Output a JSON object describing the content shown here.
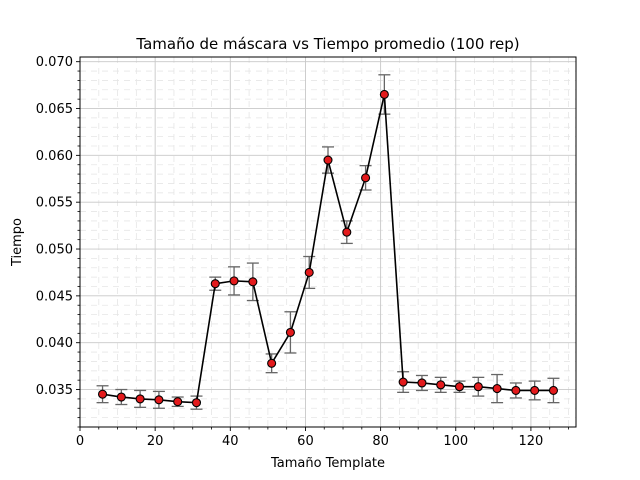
{
  "chart_data": {
    "type": "line",
    "title": "Tamaño de máscara vs Tiempo promedio (100 rep)",
    "xlabel": "Tamaño Template",
    "ylabel": "Tiempo",
    "xlim": [
      0,
      132
    ],
    "ylim": [
      0.031,
      0.0705
    ],
    "xticks": [
      0,
      20,
      40,
      60,
      80,
      100,
      120
    ],
    "yticks": [
      0.035,
      0.04,
      0.045,
      0.05,
      0.055,
      0.06,
      0.065,
      0.07
    ],
    "ytick_labels": [
      "0.035",
      "0.040",
      "0.045",
      "0.050",
      "0.055",
      "0.060",
      "0.065",
      "0.070"
    ],
    "grid": true,
    "minor_grid": true,
    "colors": {
      "line": "#000000",
      "marker_fill": "#e31a1c",
      "marker_edge": "#000000",
      "errorbar": "#666666",
      "grid_major": "#c8c8c8",
      "grid_minor": "#e6e6e6"
    },
    "series": [
      {
        "x": [
          6,
          11,
          16,
          21,
          26,
          31,
          36,
          41,
          46,
          51,
          56,
          61,
          66,
          71,
          76,
          81,
          86,
          91,
          96,
          101,
          106,
          111,
          116,
          121,
          126
        ],
        "y": [
          0.0345,
          0.0342,
          0.034,
          0.0339,
          0.0337,
          0.0336,
          0.0463,
          0.0466,
          0.0465,
          0.0378,
          0.0411,
          0.0475,
          0.0595,
          0.0518,
          0.0576,
          0.0665,
          0.0358,
          0.0357,
          0.0355,
          0.0353,
          0.0353,
          0.0351,
          0.0349,
          0.0349,
          0.0349
        ],
        "err": [
          0.0009,
          0.0008,
          0.0009,
          0.0009,
          0.0005,
          0.0007,
          0.0007,
          0.0015,
          0.002,
          0.001,
          0.0022,
          0.0017,
          0.0014,
          0.0012,
          0.0013,
          0.0021,
          0.0011,
          0.0008,
          0.0008,
          0.0006,
          0.001,
          0.0015,
          0.0008,
          0.001,
          0.0013
        ]
      }
    ]
  }
}
